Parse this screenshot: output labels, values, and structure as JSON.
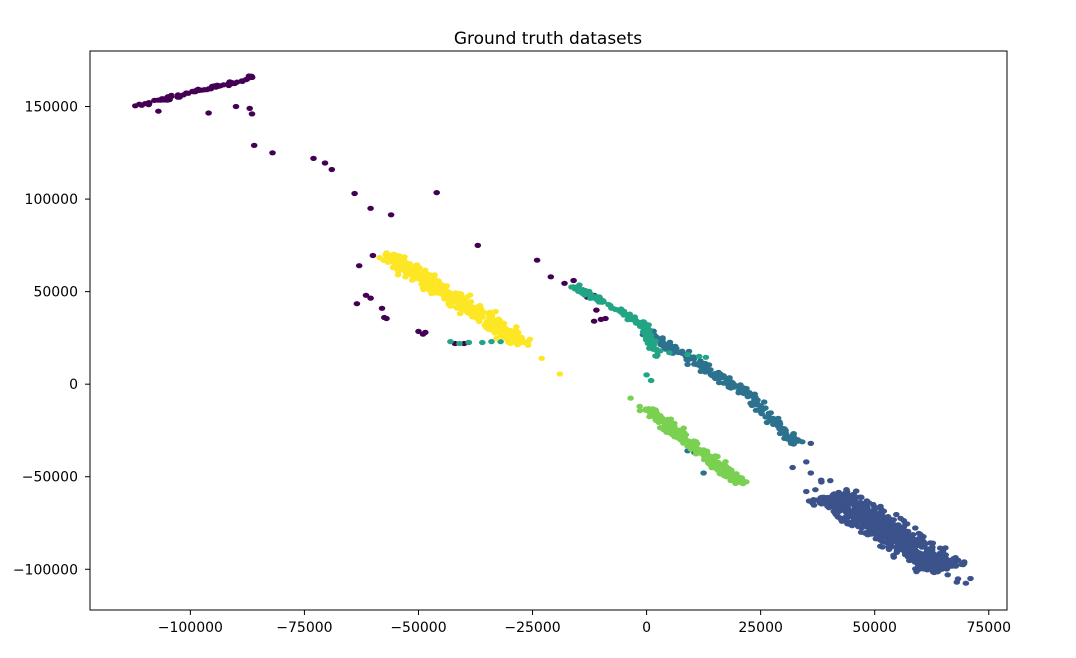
{
  "chart_data": {
    "type": "scatter",
    "title": "Ground truth datasets",
    "xlabel": "",
    "ylabel": "",
    "xlim": [
      -122000,
      79000
    ],
    "ylim": [
      -122000,
      180000
    ],
    "x_ticks": [
      -100000,
      -75000,
      -50000,
      -25000,
      0,
      25000,
      50000,
      75000
    ],
    "x_tick_labels": [
      "−100000",
      "−75000",
      "−50000",
      "−25000",
      "0",
      "25000",
      "50000",
      "75000"
    ],
    "y_ticks": [
      -100000,
      -50000,
      0,
      50000,
      100000,
      150000
    ],
    "y_tick_labels": [
      "−100000",
      "−50000",
      "0",
      "50000",
      "100000",
      "150000"
    ],
    "grid": false,
    "legend": "none",
    "marker_colors": {
      "dark_purple": "#440154",
      "indigo": "#3b528b",
      "teal_blue": "#2c728e",
      "teal_green": "#21a585",
      "light_green": "#7ad151",
      "yellow": "#fde725"
    },
    "series": [
      {
        "color": "#440154",
        "segments": [
          {
            "from": [
              -112000,
              150000
            ],
            "to": [
              -86000,
              166000
            ],
            "n": 70,
            "spread": 900
          }
        ],
        "points": [
          [
            -107000,
            147500
          ],
          [
            -96000,
            146500
          ],
          [
            -90000,
            150000
          ],
          [
            -87000,
            149000
          ],
          [
            -86500,
            146000
          ],
          [
            -86000,
            129000
          ],
          [
            -82000,
            125000
          ],
          [
            -73000,
            122000
          ],
          [
            -70500,
            119500
          ],
          [
            -69000,
            116000
          ],
          [
            -64000,
            103000
          ],
          [
            -60500,
            95000
          ],
          [
            -56000,
            91500
          ],
          [
            -46000,
            103500
          ],
          [
            -37000,
            75000
          ],
          [
            -60000,
            69500
          ],
          [
            -63000,
            64000
          ],
          [
            -24000,
            67000
          ],
          [
            -21000,
            58000
          ],
          [
            -18000,
            54500
          ],
          [
            -16000,
            56000
          ],
          [
            -14000,
            51000
          ],
          [
            -13000,
            47000
          ],
          [
            -11500,
            48000
          ],
          [
            -11000,
            40000
          ],
          [
            -11500,
            34000
          ],
          [
            -10000,
            35000
          ],
          [
            -9000,
            35500
          ],
          [
            -58000,
            41000
          ],
          [
            -57500,
            36000
          ],
          [
            -57000,
            35500
          ],
          [
            -60500,
            46500
          ],
          [
            -61500,
            48000
          ],
          [
            -63500,
            43500
          ],
          [
            -50000,
            28500
          ],
          [
            -49000,
            27000
          ],
          [
            -48500,
            28000
          ],
          [
            -42000,
            22000
          ],
          [
            -40000,
            22000
          ],
          [
            -39000,
            22500
          ]
        ]
      },
      {
        "color": "#3b528b",
        "segments": [
          {
            "from": [
              38000,
              -50000
            ],
            "to": [
              70000,
              -107000
            ],
            "n": 40,
            "spread": 2500
          },
          {
            "from": [
              40000,
              -60000
            ],
            "to": [
              66000,
              -100000
            ],
            "n": 700,
            "spread": 5000
          }
        ],
        "points": [
          [
            36000,
            -32000
          ],
          [
            32000,
            -45000
          ],
          [
            35000,
            -42000
          ],
          [
            36000,
            -48000
          ],
          [
            37000,
            -57000
          ],
          [
            35000,
            -58000
          ],
          [
            38000,
            -62000
          ],
          [
            42000,
            -65000
          ],
          [
            45000,
            -63000
          ],
          [
            49000,
            -70000
          ],
          [
            62000,
            -95000
          ],
          [
            66000,
            -103000
          ],
          [
            68000,
            -107000
          ],
          [
            70000,
            -107500
          ],
          [
            71000,
            -105000
          ]
        ]
      },
      {
        "color": "#2c728e",
        "segments": [
          {
            "from": [
              0,
              28000
            ],
            "to": [
              22000,
              -5000
            ],
            "n": 120,
            "spread": 1800
          },
          {
            "from": [
              22000,
              -5000
            ],
            "to": [
              33000,
              -32000
            ],
            "n": 80,
            "spread": 1800
          }
        ],
        "points": [
          [
            9000,
            -36000
          ],
          [
            10500,
            -37000
          ],
          [
            12500,
            -48000
          ],
          [
            3500,
            25000
          ],
          [
            8500,
            16000
          ]
        ]
      },
      {
        "color": "#21a585",
        "segments": [
          {
            "from": [
              -16000,
              53000
            ],
            "to": [
              1000,
              30000
            ],
            "n": 80,
            "spread": 1200
          },
          {
            "from": [
              0,
              30000
            ],
            "to": [
              2000,
              15000
            ],
            "n": 40,
            "spread": 1000
          }
        ],
        "points": [
          [
            -43000,
            23000
          ],
          [
            -41000,
            22000
          ],
          [
            -39000,
            22500
          ],
          [
            -36000,
            22500
          ],
          [
            -34000,
            23000
          ],
          [
            -32000,
            23000
          ],
          [
            0,
            5000
          ],
          [
            1000,
            2000
          ],
          [
            9000,
            16000
          ],
          [
            11500,
            15000
          ],
          [
            13000,
            14500
          ],
          [
            3000,
            18000
          ],
          [
            5000,
            17000
          ]
        ]
      },
      {
        "color": "#7ad151",
        "segments": [
          {
            "from": [
              0,
              -13000
            ],
            "to": [
              21000,
              -54000
            ],
            "n": 260,
            "spread": 1600
          }
        ],
        "points": [
          [
            -3500,
            -7500
          ],
          [
            -1500,
            -12000
          ],
          [
            3000,
            -17000
          ],
          [
            14000,
            -39000
          ],
          [
            16000,
            -43000
          ],
          [
            18000,
            -47000
          ],
          [
            20000,
            -51000
          ]
        ]
      },
      {
        "color": "#fde725",
        "segments": [
          {
            "from": [
              -57000,
              70000
            ],
            "to": [
              -27000,
              22000
            ],
            "n": 420,
            "spread": 2800
          }
        ],
        "points": [
          [
            -57000,
            71000
          ],
          [
            -54000,
            69000
          ],
          [
            -23000,
            14000
          ],
          [
            -19000,
            5500
          ],
          [
            -26000,
            21000
          ]
        ]
      }
    ]
  }
}
